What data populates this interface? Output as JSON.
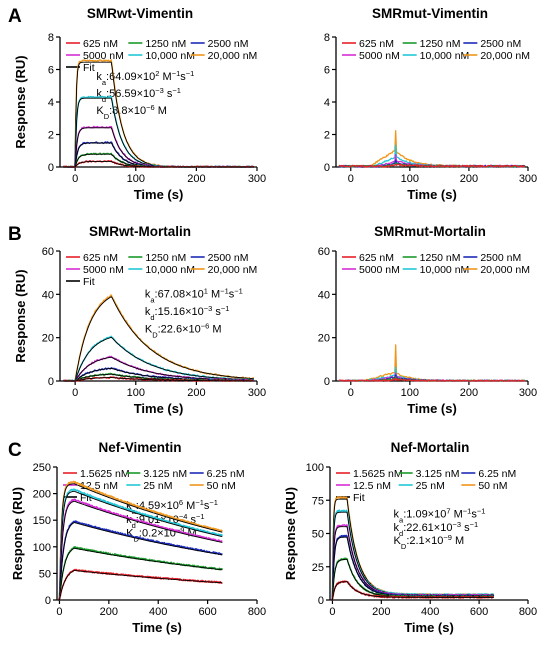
{
  "panel_letters": [
    "A",
    "B",
    "C"
  ],
  "chart_data": [
    {
      "type": "line",
      "panel": "A",
      "title": "SMRwt-Vimentin",
      "xlabel": "Time (s)",
      "ylabel": "Response (RU)",
      "xlim": [
        -25,
        300
      ],
      "ylim": [
        0,
        8
      ],
      "xticks": [
        0,
        100,
        200,
        300
      ],
      "yticks": [
        0,
        2,
        4,
        6,
        8
      ],
      "legend": {
        "placement": "top",
        "entries": [
          {
            "label": "625 nM",
            "color": "#e8202a"
          },
          {
            "label": "1250 nM",
            "color": "#1a9a2c"
          },
          {
            "label": "2500 nM",
            "color": "#1c2bb8"
          },
          {
            "label": "5000 nM",
            "color": "#d62ed6"
          },
          {
            "label": "10,000 nM",
            "color": "#22c6d6"
          },
          {
            "label": "20,000 nM",
            "color": "#f0961c"
          },
          {
            "label": "Fit",
            "color": "#000000"
          }
        ]
      },
      "annotations": [
        {
          "label": "k",
          "sub": "a",
          "text": ":64.09×10",
          "sup": "2",
          "unit": " M",
          "unit_sup": "−1",
          "tail": "s",
          "tail_sup": "−1",
          "at": [
            35,
            5.35
          ]
        },
        {
          "label": "k",
          "sub": "d",
          "text": ":56.59×10",
          "sup": "−3",
          "unit": " s",
          "unit_sup": "−1",
          "at": [
            35,
            4.3
          ]
        },
        {
          "label": "K",
          "sub": "D",
          "text": ":8.8×10",
          "sup": "−6",
          "unit": " M",
          "at": [
            35,
            3.25
          ]
        }
      ],
      "association_end": 60,
      "series": [
        {
          "name": "20,000 nM",
          "color": "#f0961c",
          "plateau": 6.55,
          "ka_s": 0.6,
          "kd_s": 0.056
        },
        {
          "name": "10,000 nM",
          "color": "#22c6d6",
          "plateau": 4.3,
          "ka_s": 0.45,
          "kd_s": 0.056
        },
        {
          "name": "5000 nM",
          "color": "#d62ed6",
          "plateau": 2.45,
          "ka_s": 0.32,
          "kd_s": 0.056
        },
        {
          "name": "2500 nM",
          "color": "#1c2bb8",
          "plateau": 1.5,
          "ka_s": 0.25,
          "kd_s": 0.056
        },
        {
          "name": "1250 nM",
          "color": "#1a9a2c",
          "plateau": 0.8,
          "ka_s": 0.2,
          "kd_s": 0.056
        },
        {
          "name": "625 nM",
          "color": "#e8202a",
          "plateau": 0.35,
          "ka_s": 0.15,
          "kd_s": 0.056
        }
      ]
    },
    {
      "type": "line",
      "panel": "",
      "title": "SMRmut-Vimentin",
      "xlabel": "Time (s)",
      "ylabel": "",
      "xlim": [
        -25,
        300
      ],
      "ylim": [
        0,
        8
      ],
      "xticks": [
        0,
        100,
        200,
        300
      ],
      "yticks": [
        0,
        2,
        4,
        6,
        8
      ],
      "legend": {
        "placement": "top",
        "entries": [
          {
            "label": "625 nM",
            "color": "#e8202a"
          },
          {
            "label": "1250 nM",
            "color": "#1a9a2c"
          },
          {
            "label": "2500 nM",
            "color": "#1c2bb8"
          },
          {
            "label": "5000 nM",
            "color": "#d62ed6"
          },
          {
            "label": "10,000 nM",
            "color": "#22c6d6"
          },
          {
            "label": "20,000 nM",
            "color": "#f0961c"
          }
        ]
      },
      "annotations": [],
      "association_end": 75,
      "spike_series": [
        {
          "name": "20,000 nM",
          "color": "#f0961c",
          "peak": 2.2,
          "base": 1.0,
          "rise_from": 30
        },
        {
          "name": "10,000 nM",
          "color": "#22c6d6",
          "peak": 1.3,
          "base": 0.6,
          "rise_from": 35
        },
        {
          "name": "5000 nM",
          "color": "#d62ed6",
          "peak": 0.8,
          "base": 0.35,
          "rise_from": 40
        },
        {
          "name": "2500 nM",
          "color": "#1c2bb8",
          "peak": 0.45,
          "base": 0.2,
          "rise_from": 45
        },
        {
          "name": "1250 nM",
          "color": "#1a9a2c",
          "peak": 0.25,
          "base": 0.15,
          "rise_from": 50
        },
        {
          "name": "625 nM",
          "color": "#e8202a",
          "peak": 0.15,
          "base": 0.1,
          "rise_from": 55
        }
      ]
    },
    {
      "type": "line",
      "panel": "B",
      "title": "SMRwt-Mortalin",
      "xlabel": "Time (s)",
      "ylabel": "Response (RU)",
      "xlim": [
        -25,
        300
      ],
      "ylim": [
        0,
        60
      ],
      "xticks": [
        0,
        100,
        200,
        300
      ],
      "yticks": [
        0,
        20,
        40,
        60
      ],
      "legend": {
        "placement": "top",
        "entries": [
          {
            "label": "625 nM",
            "color": "#e8202a"
          },
          {
            "label": "1250 nM",
            "color": "#1a9a2c"
          },
          {
            "label": "2500 nM",
            "color": "#1c2bb8"
          },
          {
            "label": "5000 nM",
            "color": "#d62ed6"
          },
          {
            "label": "10,000 nM",
            "color": "#22c6d6"
          },
          {
            "label": "20,000 nM",
            "color": "#f0961c"
          },
          {
            "label": "Fit",
            "color": "#000000"
          }
        ]
      },
      "annotations": [
        {
          "label": "k",
          "sub": "a",
          "text": ":67.08×10",
          "sup": "1",
          "unit": " M",
          "unit_sup": "−1",
          "tail": "s",
          "tail_sup": "−1",
          "at": [
            115,
            38.5
          ]
        },
        {
          "label": "k",
          "sub": "d",
          "text": ":15.16×10",
          "sup": "−3",
          "unit": " s",
          "unit_sup": "−1",
          "at": [
            115,
            30.5
          ]
        },
        {
          "label": "K",
          "sub": "D",
          "text": ":22.6×10",
          "sup": "−6",
          "unit": " M",
          "at": [
            115,
            22.5
          ]
        }
      ],
      "association_end": 60,
      "series": [
        {
          "name": "20,000 nM",
          "color": "#f0961c",
          "plateau": 43.5,
          "ka_s": 0.04,
          "kd_s": 0.0152,
          "pre": 10
        },
        {
          "name": "10,000 nM",
          "color": "#22c6d6",
          "plateau": 22.5,
          "ka_s": 0.04,
          "kd_s": 0.0152,
          "pre": 10
        },
        {
          "name": "5000 nM",
          "color": "#d62ed6",
          "plateau": 12.3,
          "ka_s": 0.04,
          "kd_s": 0.0152,
          "pre": 10
        },
        {
          "name": "2500 nM",
          "color": "#1c2bb8",
          "plateau": 6.5,
          "ka_s": 0.04,
          "kd_s": 0.0152,
          "pre": 10
        },
        {
          "name": "1250 nM",
          "color": "#1a9a2c",
          "plateau": 3.5,
          "ka_s": 0.04,
          "kd_s": 0.0152,
          "pre": 10
        },
        {
          "name": "625 nM",
          "color": "#e8202a",
          "plateau": 1.8,
          "ka_s": 0.04,
          "kd_s": 0.0152,
          "pre": 10
        }
      ]
    },
    {
      "type": "line",
      "panel": "",
      "title": "SMRmut-Mortalin",
      "xlabel": "Time (s)",
      "ylabel": "",
      "xlim": [
        -25,
        300
      ],
      "ylim": [
        0,
        60
      ],
      "xticks": [
        0,
        100,
        200,
        300
      ],
      "yticks": [
        0,
        20,
        40,
        60
      ],
      "legend": {
        "placement": "top",
        "entries": [
          {
            "label": "625 nM",
            "color": "#e8202a"
          },
          {
            "label": "1250 nM",
            "color": "#1a9a2c"
          },
          {
            "label": "2500 nM",
            "color": "#1c2bb8"
          },
          {
            "label": "5000 nM",
            "color": "#d62ed6"
          },
          {
            "label": "10,000 nM",
            "color": "#22c6d6"
          },
          {
            "label": "20,000 nM",
            "color": "#f0961c"
          }
        ]
      },
      "annotations": [],
      "association_end": 75,
      "spike_series": [
        {
          "name": "20,000 nM",
          "color": "#f0961c",
          "peak": 16.5,
          "base": 4.0,
          "rise_from": 20
        },
        {
          "name": "10,000 nM",
          "color": "#22c6d6",
          "peak": 6.0,
          "base": 2.5,
          "rise_from": 25
        },
        {
          "name": "5000 nM",
          "color": "#d62ed6",
          "peak": 4.0,
          "base": 2.0,
          "rise_from": 30
        },
        {
          "name": "2500 nM",
          "color": "#1c2bb8",
          "peak": 3.0,
          "base": 1.5,
          "rise_from": 35
        },
        {
          "name": "1250 nM",
          "color": "#1a9a2c",
          "peak": 2.0,
          "base": 1.0,
          "rise_from": 40
        },
        {
          "name": "625 nM",
          "color": "#e8202a",
          "peak": 1.2,
          "base": 0.6,
          "rise_from": 45
        }
      ]
    },
    {
      "type": "line",
      "panel": "C",
      "title": "Nef-Vimentin",
      "xlabel": "Time (s)",
      "ylabel": "Response (RU)",
      "xlim": [
        -10,
        800
      ],
      "ylim": [
        0,
        250
      ],
      "xticks": [
        0,
        200,
        400,
        600,
        800
      ],
      "yticks": [
        0,
        50,
        100,
        150,
        200,
        250
      ],
      "legend": {
        "placement": "top",
        "entries": [
          {
            "label": "1.5625 nM",
            "color": "#e8202a"
          },
          {
            "label": "3.125 nM",
            "color": "#1a9a2c"
          },
          {
            "label": "6.25 nM",
            "color": "#1c2bb8"
          },
          {
            "label": "12.5 nM",
            "color": "#d62ed6"
          },
          {
            "label": "25 nM",
            "color": "#22c6d6"
          },
          {
            "label": "50 nM",
            "color": "#f0961c"
          },
          {
            "label": "Fit",
            "color": "#000000"
          }
        ]
      },
      "annotations": [
        {
          "label": "k",
          "sub": "a",
          "text": ":4.59×10",
          "sup": "6",
          "unit": " M",
          "unit_sup": "−1",
          "tail": "s",
          "tail_sup": "−1",
          "at": [
            270,
            171
          ]
        },
        {
          "label": "k",
          "sub": "d",
          "text": ":9.01×10",
          "sup": "−4",
          "unit": " s",
          "unit_sup": "−1",
          "at": [
            270,
            145
          ]
        },
        {
          "label": "K",
          "sub": "D",
          "text": ":0.2×10",
          "sup": "−9",
          "unit": " M",
          "at": [
            270,
            119
          ]
        }
      ],
      "association_end": 60,
      "x_end": 660,
      "series": [
        {
          "name": "50 nM",
          "color": "#f0961c",
          "plateau": 222,
          "ka_s": 0.12,
          "kd_s": 0.0009
        },
        {
          "name": "25 nM",
          "color": "#22c6d6",
          "plateau": 208,
          "ka_s": 0.1,
          "kd_s": 0.0009
        },
        {
          "name": "12.5 nM",
          "color": "#d62ed6",
          "plateau": 190,
          "ka_s": 0.08,
          "kd_s": 0.0009
        },
        {
          "name": "6.25 nM",
          "color": "#1c2bb8",
          "plateau": 152,
          "ka_s": 0.06,
          "kd_s": 0.0009
        },
        {
          "name": "3.125 nM",
          "color": "#1a9a2c",
          "plateau": 104,
          "ka_s": 0.05,
          "kd_s": 0.0009
        },
        {
          "name": "1.5625 nM",
          "color": "#e8202a",
          "plateau": 62,
          "ka_s": 0.04,
          "kd_s": 0.0009
        }
      ]
    },
    {
      "type": "line",
      "panel": "",
      "title": "Nef-Mortalin",
      "xlabel": "Time (s)",
      "ylabel": "Response (RU)",
      "xlim": [
        -10,
        800
      ],
      "ylim": [
        0,
        100
      ],
      "xticks": [
        0,
        200,
        400,
        600,
        800
      ],
      "yticks": [
        0,
        25,
        50,
        75,
        100
      ],
      "legend": {
        "placement": "top",
        "entries": [
          {
            "label": "1.5625 nM",
            "color": "#e8202a"
          },
          {
            "label": "3.125 nM",
            "color": "#1a9a2c"
          },
          {
            "label": "6.25 nM",
            "color": "#1c2bb8"
          },
          {
            "label": "12.5 nM",
            "color": "#d62ed6"
          },
          {
            "label": "25 nM",
            "color": "#22c6d6"
          },
          {
            "label": "50 nM",
            "color": "#f0961c"
          },
          {
            "label": "Fit",
            "color": "#000000"
          }
        ]
      },
      "annotations": [
        {
          "label": "k",
          "sub": "a",
          "text": ":1.09×10",
          "sup": "7",
          "unit": " M",
          "unit_sup": "−1",
          "tail": "s",
          "tail_sup": "−1",
          "at": [
            250,
            62
          ]
        },
        {
          "label": "k",
          "sub": "d",
          "text": ":22.61×10",
          "sup": "−3",
          "unit": " s",
          "unit_sup": "−1",
          "at": [
            250,
            52
          ]
        },
        {
          "label": "K",
          "sub": "D",
          "text": ":2.1×10",
          "sup": "−9",
          "unit": " M",
          "at": [
            250,
            42
          ]
        }
      ],
      "association_end": 60,
      "x_end": 660,
      "series": [
        {
          "name": "50 nM",
          "color": "#f0961c",
          "plateau": 77,
          "ka_s": 0.3,
          "kd_s": 0.0226,
          "floor": 4
        },
        {
          "name": "25 nM",
          "color": "#22c6d6",
          "plateau": 67,
          "ka_s": 0.25,
          "kd_s": 0.0226,
          "floor": 4
        },
        {
          "name": "12.5 nM",
          "color": "#d62ed6",
          "plateau": 56,
          "ka_s": 0.2,
          "kd_s": 0.0226,
          "floor": 3.5
        },
        {
          "name": "6.25 nM",
          "color": "#1c2bb8",
          "plateau": 48,
          "ka_s": 0.15,
          "kd_s": 0.0226,
          "floor": 3
        },
        {
          "name": "3.125 nM",
          "color": "#1a9a2c",
          "plateau": 31,
          "ka_s": 0.12,
          "kd_s": 0.0226,
          "floor": 2.5
        },
        {
          "name": "1.5625 nM",
          "color": "#e8202a",
          "plateau": 14,
          "ka_s": 0.1,
          "kd_s": 0.0226,
          "floor": 2
        }
      ]
    }
  ]
}
